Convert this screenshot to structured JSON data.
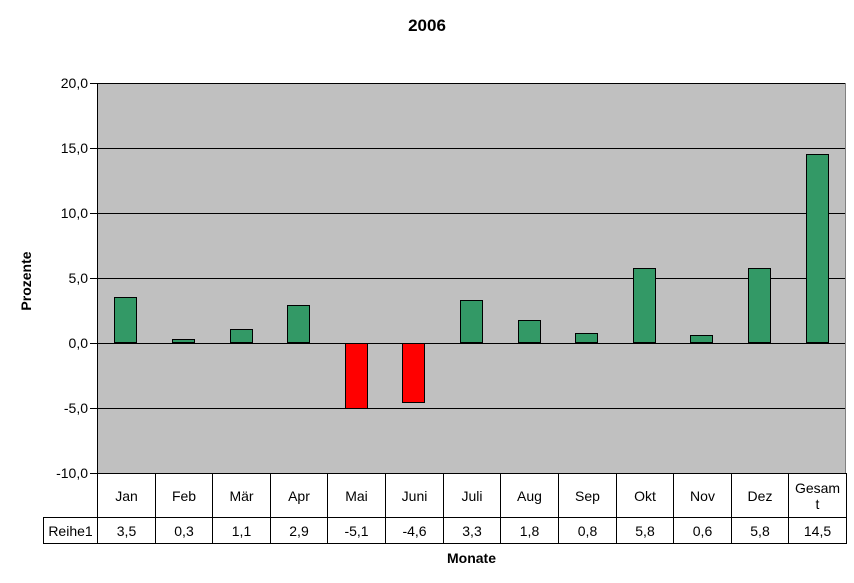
{
  "chart_data": {
    "type": "bar",
    "title": "2006",
    "xlabel": "Monate",
    "ylabel": "Prozente",
    "series_name": "Reihe1",
    "categories": [
      "Jan",
      "Feb",
      "Mär",
      "Apr",
      "Mai",
      "Juni",
      "Juli",
      "Aug",
      "Sep",
      "Okt",
      "Nov",
      "Dez",
      "Gesamt"
    ],
    "values": [
      3.5,
      0.3,
      1.1,
      2.9,
      -5.1,
      -4.6,
      3.3,
      1.8,
      0.8,
      5.8,
      0.6,
      5.8,
      14.5
    ],
    "value_labels": [
      "3,5",
      "0,3",
      "1,1",
      "2,9",
      "-5,1",
      "-4,6",
      "3,3",
      "1,8",
      "0,8",
      "5,8",
      "0,6",
      "5,8",
      "14,5"
    ],
    "ylim": [
      -10,
      20
    ],
    "ytick_step": 5,
    "ytick_labels": [
      "20,0",
      "15,0",
      "10,0",
      "5,0",
      "0,0",
      "-5,0",
      "-10,0"
    ],
    "grid": true,
    "legend_position": "none",
    "colors": {
      "positive_bar": "#339966",
      "negative_bar": "#FF0000",
      "plot_background": "#C0C0C0",
      "bar_border": "#000000",
      "gridline": "#000000"
    }
  }
}
